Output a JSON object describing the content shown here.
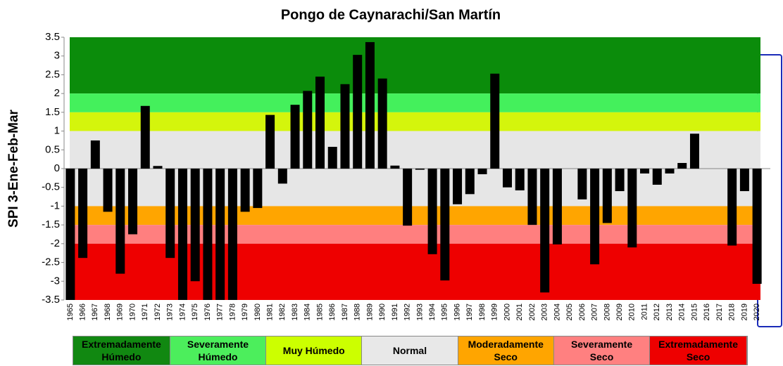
{
  "chart_data": {
    "type": "bar",
    "title": "Pongo de Caynarachi/San Martín",
    "y_label": "SPI 3-Ene-Feb-Mar",
    "categories": [
      "1965",
      "1966",
      "1967",
      "1968",
      "1969",
      "1970",
      "1971",
      "1972",
      "1973",
      "1974",
      "1975",
      "1976",
      "1977",
      "1978",
      "1979",
      "1980",
      "1981",
      "1982",
      "1983",
      "1984",
      "1985",
      "1986",
      "1987",
      "1988",
      "1989",
      "1990",
      "1991",
      "1992",
      "1993",
      "1994",
      "1995",
      "1996",
      "1997",
      "1998",
      "1999",
      "2000",
      "2001",
      "2002",
      "2003",
      "2004",
      "2005",
      "2006",
      "2007",
      "2008",
      "2009",
      "2010",
      "2011",
      "2012",
      "2013",
      "2014",
      "2015",
      "2016",
      "2017",
      "2018",
      "2019",
      "2020"
    ],
    "values": [
      -3.5,
      -2.38,
      0.75,
      -1.15,
      -2.8,
      -1.75,
      1.67,
      0.07,
      -2.38,
      -3.5,
      -3.0,
      -3.5,
      -3.5,
      -3.5,
      -1.15,
      -1.05,
      1.43,
      -0.4,
      1.7,
      2.07,
      2.45,
      0.58,
      2.25,
      3.03,
      3.37,
      2.4,
      0.08,
      -1.52,
      -0.03,
      -2.28,
      -2.98,
      -0.95,
      -0.68,
      -0.15,
      2.53,
      -0.5,
      -0.58,
      -1.5,
      -3.3,
      -2.02,
      0,
      -0.82,
      -2.55,
      -1.45,
      -0.6,
      -2.1,
      -0.13,
      -0.43,
      -0.13,
      0.15,
      0.93,
      0,
      0,
      -2.05,
      -0.6,
      -3.07
    ],
    "color": "#000000",
    "ylim": [
      -3.5,
      3.5
    ],
    "yticks": [
      3.5,
      3,
      2.5,
      2,
      1.5,
      1,
      0.5,
      0,
      -0.5,
      -1,
      -1.5,
      -2,
      -2.5,
      -3,
      -3.5
    ],
    "bands": [
      {
        "label": "Extremadamente Húmedo",
        "from": 2,
        "to": 3.5,
        "color": "#0b8c0b",
        "legend_color": "#118811"
      },
      {
        "label": "Severamente Húmedo",
        "from": 1.5,
        "to": 2,
        "color": "#44f05c",
        "legend_color": "#4cee5c"
      },
      {
        "label": "Muy Húmedo",
        "from": 1,
        "to": 1.5,
        "color": "#d4f50c",
        "legend_color": "#ccff00"
      },
      {
        "label": "Normal",
        "from": -1,
        "to": 1,
        "color": "#e6e6e6",
        "legend_color": "#e8e8e8"
      },
      {
        "label": "Moderadamente Seco",
        "from": -1.5,
        "to": -1,
        "color": "#ffa500",
        "legend_color": "#ffa500"
      },
      {
        "label": "Severamente Seco",
        "from": -2,
        "to": -1.5,
        "color": "#ff7f7f",
        "legend_color": "#ff8080"
      },
      {
        "label": "Extremadamente Seco",
        "from": -3.5,
        "to": -2,
        "color": "#ee0000",
        "legend_color": "#ee0000"
      }
    ]
  }
}
